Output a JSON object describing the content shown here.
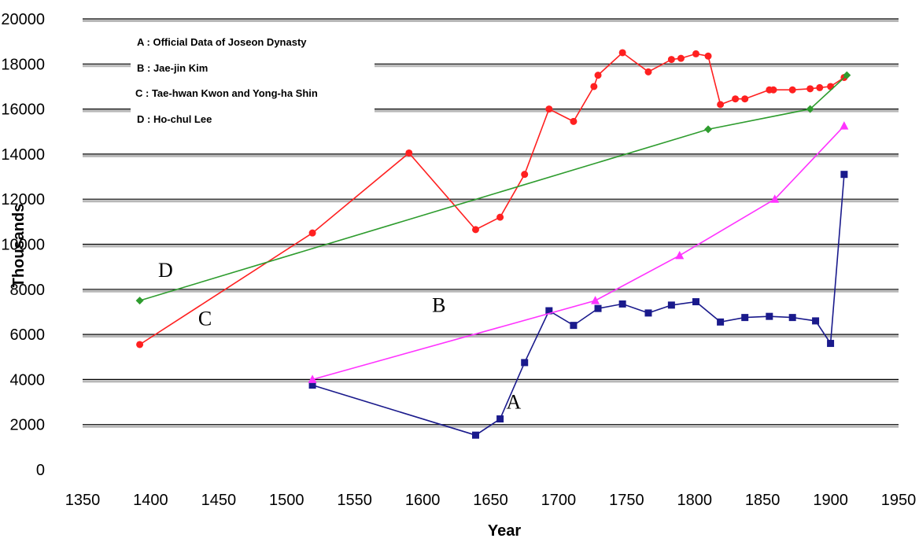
{
  "chart_data": {
    "type": "line",
    "title": "",
    "xlabel": "Year",
    "ylabel": "Thousands",
    "xlim": [
      1350,
      1950
    ],
    "ylim": [
      0,
      20000
    ],
    "x_ticks": [
      1350,
      1400,
      1450,
      1500,
      1550,
      1600,
      1650,
      1700,
      1750,
      1800,
      1850,
      1900,
      1950
    ],
    "y_ticks": [
      0,
      2000,
      4000,
      6000,
      8000,
      10000,
      12000,
      14000,
      16000,
      18000,
      20000
    ],
    "grid": "horizontal",
    "legend": {
      "placement": "top-left",
      "entries": [
        "A : Official Data of Joseon Dynasty",
        "B : Jae-jin Kim",
        "C : Tae-hwan Kwon and Yong-ha Shin",
        "D : Ho-chul Lee"
      ]
    },
    "series": [
      {
        "name": "A",
        "color": "#1a1a8c",
        "marker": "square",
        "label_at": [
          1667,
          2700
        ],
        "points": [
          [
            1519,
            3750
          ],
          [
            1639,
            1530
          ],
          [
            1657,
            2250
          ],
          [
            1675,
            4750
          ],
          [
            1693,
            7050
          ],
          [
            1711,
            6400
          ],
          [
            1729,
            7150
          ],
          [
            1747,
            7350
          ],
          [
            1766,
            6950
          ],
          [
            1783,
            7300
          ],
          [
            1801,
            7450
          ],
          [
            1819,
            6550
          ],
          [
            1837,
            6750
          ],
          [
            1855,
            6800
          ],
          [
            1872,
            6750
          ],
          [
            1889,
            6600
          ],
          [
            1900,
            5600
          ],
          [
            1910,
            13100
          ]
        ]
      },
      {
        "name": "B",
        "color": "#ff33ff",
        "marker": "triangle",
        "label_at": [
          1612,
          7000
        ],
        "points": [
          [
            1519,
            4000
          ],
          [
            1727,
            7500
          ],
          [
            1789,
            9500
          ],
          [
            1859,
            12000
          ],
          [
            1910,
            15250
          ]
        ]
      },
      {
        "name": "C",
        "color": "#ff2020",
        "marker": "circle",
        "label_at": [
          1440,
          6400
        ],
        "points": [
          [
            1392,
            5550
          ],
          [
            1519,
            10500
          ],
          [
            1590,
            14050
          ],
          [
            1639,
            10650
          ],
          [
            1657,
            11200
          ],
          [
            1675,
            13100
          ],
          [
            1693,
            16000
          ],
          [
            1711,
            15450
          ],
          [
            1726,
            17000
          ],
          [
            1729,
            17500
          ],
          [
            1747,
            18500
          ],
          [
            1766,
            17650
          ],
          [
            1783,
            18200
          ],
          [
            1790,
            18250
          ],
          [
            1801,
            18450
          ],
          [
            1810,
            18350
          ],
          [
            1819,
            16200
          ],
          [
            1830,
            16450
          ],
          [
            1837,
            16450
          ],
          [
            1855,
            16850
          ],
          [
            1858,
            16850
          ],
          [
            1872,
            16850
          ],
          [
            1885,
            16900
          ],
          [
            1892,
            16950
          ],
          [
            1900,
            17000
          ],
          [
            1910,
            17400
          ]
        ]
      },
      {
        "name": "D",
        "color": "#2e9c2e",
        "marker": "diamond",
        "label_at": [
          1411,
          8550
        ],
        "points": [
          [
            1392,
            7500
          ],
          [
            1810,
            15100
          ],
          [
            1885,
            16000
          ],
          [
            1912,
            17500
          ]
        ]
      }
    ]
  }
}
